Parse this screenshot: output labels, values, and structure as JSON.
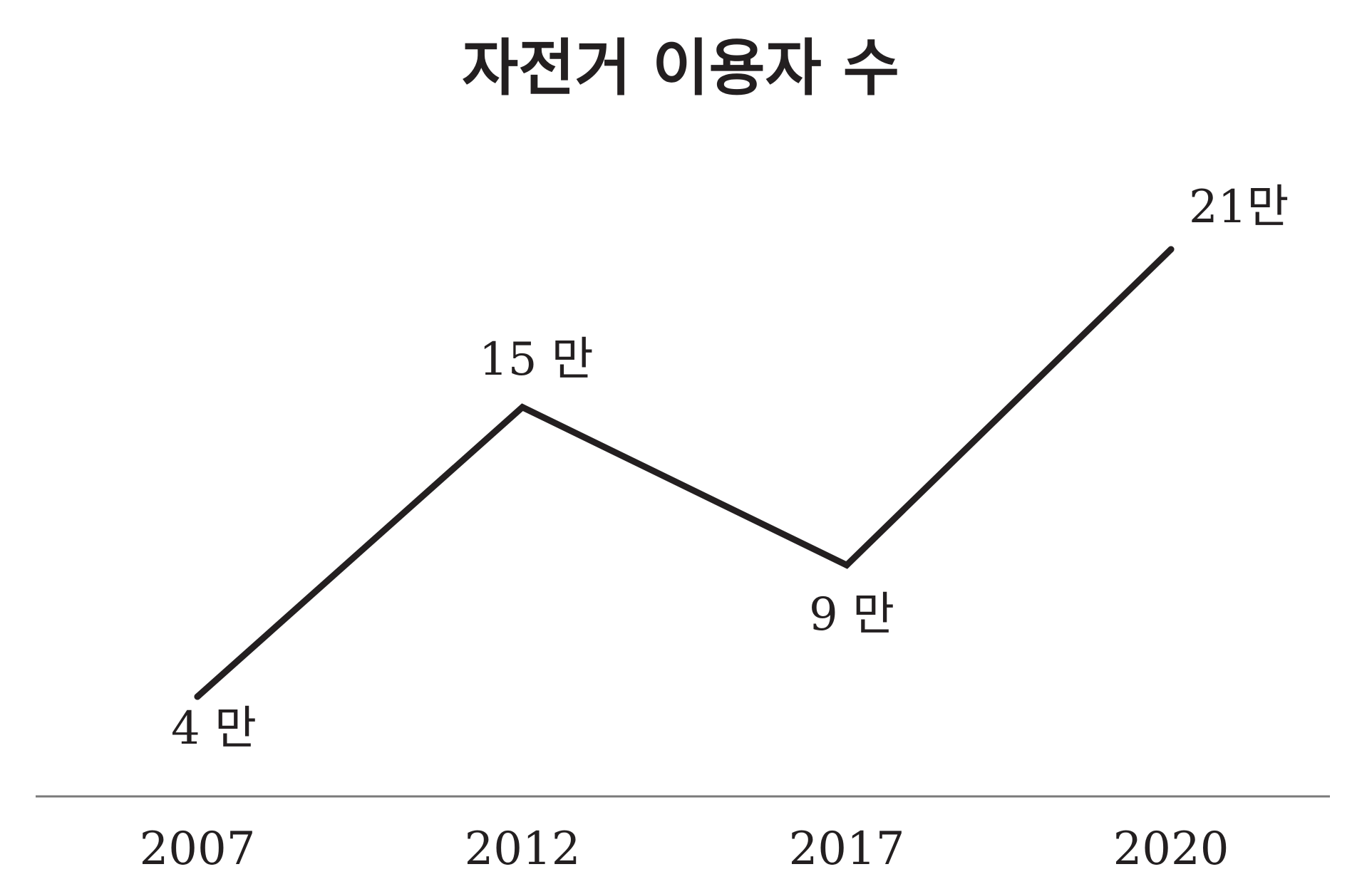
{
  "chart_data": {
    "type": "line",
    "title": "자전거 이용자 수",
    "xlabel": "",
    "ylabel": "",
    "categories": [
      "2007",
      "2012",
      "2017",
      "2020"
    ],
    "series": [
      {
        "values": [
          4,
          15,
          9,
          21
        ],
        "labels": [
          "4 만",
          "15 만",
          "9 만",
          "21만"
        ]
      }
    ],
    "ylim": [
      0,
      25
    ],
    "grid": false,
    "legend": "none",
    "line_color": "#231f20",
    "axis_color": "#7a7a7a"
  }
}
